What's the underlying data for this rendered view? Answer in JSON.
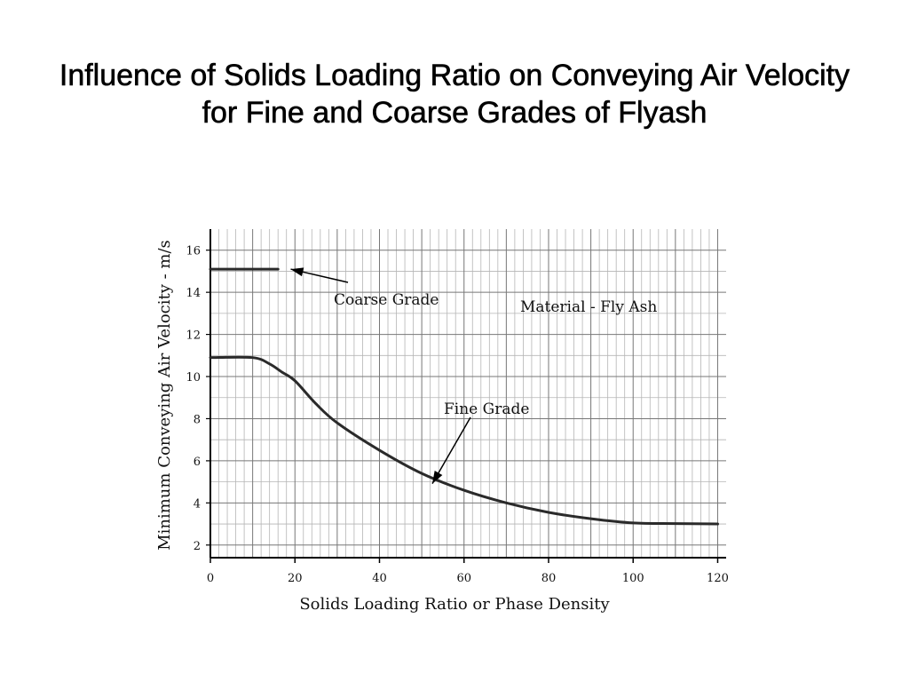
{
  "title": "Influence of Solids Loading Ratio on Conveying Air Velocity for Fine and Coarse Grades of Flyash",
  "chart_data": {
    "type": "line",
    "xlabel": "Solids Loading Ratio or Phase Density",
    "ylabel": "Minimum Conveying Air Velocity - m/s",
    "xlim": [
      0,
      122
    ],
    "ylim": [
      1.4,
      17
    ],
    "x_ticks": [
      "0",
      "20",
      "40",
      "60",
      "80",
      "100",
      "120"
    ],
    "y_ticks": [
      "2",
      "4",
      "6",
      "8",
      "10",
      "12",
      "14",
      "16"
    ],
    "grid": true,
    "series": [
      {
        "name": "Coarse Grade",
        "x": [
          0,
          16
        ],
        "y": [
          15.1,
          15.1
        ]
      },
      {
        "name": "Fine Grade",
        "x": [
          0,
          10,
          14,
          17,
          20,
          25,
          30,
          40,
          50,
          60,
          70,
          80,
          90,
          100,
          110,
          120
        ],
        "y": [
          10.9,
          10.9,
          10.6,
          10.2,
          9.8,
          8.7,
          7.8,
          6.5,
          5.4,
          4.6,
          4.0,
          3.55,
          3.25,
          3.05,
          3.02,
          3.0
        ]
      }
    ],
    "annotations": [
      {
        "text": "Coarse Grade",
        "arrow_to_series": "Coarse Grade"
      },
      {
        "text": "Fine Grade",
        "arrow_to_series": "Fine Grade"
      },
      {
        "text": "Material - Fly Ash"
      }
    ]
  }
}
